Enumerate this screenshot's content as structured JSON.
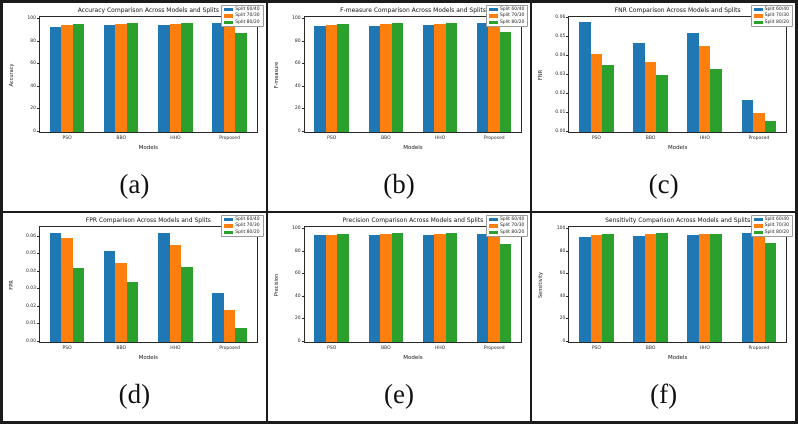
{
  "panels": {
    "captions": [
      "(a)",
      "(b)",
      "(c)",
      "(d)",
      "(e)",
      "(f)"
    ]
  },
  "legend": {
    "labels": [
      "Split 60/40",
      "Split 70/30",
      "Split 80/20"
    ],
    "colors": [
      "#1f77b4",
      "#ff7f0e",
      "#2ca02c"
    ]
  },
  "chart_data": [
    {
      "type": "bar",
      "title": "Accuracy Comparison Across Models and Splits",
      "xlabel": "Models",
      "ylabel": "Accuracy",
      "categories": [
        "PSO",
        "BBO",
        "HHO",
        "Proposed"
      ],
      "ylim": [
        0,
        102
      ],
      "yticks": [
        {
          "label": "0",
          "v": 0
        },
        {
          "label": "20",
          "v": 20
        },
        {
          "label": "40",
          "v": 40
        },
        {
          "label": "60",
          "v": 60
        },
        {
          "label": "80",
          "v": 80
        },
        {
          "label": "100",
          "v": 100
        }
      ],
      "legend_position": "upper right",
      "grid": false,
      "series": [
        {
          "name": "Split 60/40",
          "color": "#1f77b4",
          "values": [
            93.5,
            95.0,
            94.5,
            96.5
          ]
        },
        {
          "name": "Split 70/30",
          "color": "#ff7f0e",
          "values": [
            95.0,
            96.0,
            95.5,
            98.0
          ]
        },
        {
          "name": "Split 80/20",
          "color": "#2ca02c",
          "values": [
            96.0,
            97.0,
            97.0,
            88.0
          ]
        }
      ]
    },
    {
      "type": "bar",
      "title": "F-measure Comparison Across Models and Splits",
      "xlabel": "Models",
      "ylabel": "F-measure",
      "categories": [
        "PSO",
        "BBO",
        "HHO",
        "Proposed"
      ],
      "ylim": [
        0,
        102
      ],
      "yticks": [
        {
          "label": "0",
          "v": 0
        },
        {
          "label": "20",
          "v": 20
        },
        {
          "label": "40",
          "v": 40
        },
        {
          "label": "60",
          "v": 60
        },
        {
          "label": "80",
          "v": 80
        },
        {
          "label": "100",
          "v": 100
        }
      ],
      "legend_position": "upper right",
      "grid": false,
      "series": [
        {
          "name": "Split 60/40",
          "color": "#1f77b4",
          "values": [
            94.0,
            94.0,
            94.5,
            96.5
          ]
        },
        {
          "name": "Split 70/30",
          "color": "#ff7f0e",
          "values": [
            95.0,
            95.5,
            95.5,
            97.5
          ]
        },
        {
          "name": "Split 80/20",
          "color": "#2ca02c",
          "values": [
            95.5,
            96.5,
            96.5,
            89.0
          ]
        }
      ]
    },
    {
      "type": "bar",
      "title": "FNR Comparison Across Models and Splits",
      "xlabel": "Models",
      "ylabel": "FNR",
      "categories": [
        "PSO",
        "BBO",
        "HHO",
        "Proposed"
      ],
      "ylim": [
        0,
        0.0605
      ],
      "yticks": [
        {
          "label": "0.00",
          "v": 0
        },
        {
          "label": "0.01",
          "v": 0.01
        },
        {
          "label": "0.02",
          "v": 0.02
        },
        {
          "label": "0.03",
          "v": 0.03
        },
        {
          "label": "0.04",
          "v": 0.04
        },
        {
          "label": "0.05",
          "v": 0.05
        },
        {
          "label": "0.06",
          "v": 0.06
        }
      ],
      "legend_position": "upper right",
      "grid": false,
      "series": [
        {
          "name": "Split 60/40",
          "color": "#1f77b4",
          "values": [
            0.058,
            0.047,
            0.052,
            0.017
          ]
        },
        {
          "name": "Split 70/30",
          "color": "#ff7f0e",
          "values": [
            0.041,
            0.037,
            0.045,
            0.01
          ]
        },
        {
          "name": "Split 80/20",
          "color": "#2ca02c",
          "values": [
            0.035,
            0.03,
            0.033,
            0.006
          ]
        }
      ]
    },
    {
      "type": "bar",
      "title": "FPR Comparison Across Models and Splits",
      "xlabel": "Models",
      "ylabel": "FPR",
      "categories": [
        "PSO",
        "BBO",
        "HHO",
        "Proposed"
      ],
      "ylim": [
        0,
        0.0655
      ],
      "yticks": [
        {
          "label": "0.00",
          "v": 0
        },
        {
          "label": "0.01",
          "v": 0.01
        },
        {
          "label": "0.02",
          "v": 0.02
        },
        {
          "label": "0.03",
          "v": 0.03
        },
        {
          "label": "0.04",
          "v": 0.04
        },
        {
          "label": "0.05",
          "v": 0.05
        },
        {
          "label": "0.06",
          "v": 0.06
        }
      ],
      "legend_position": "upper right",
      "grid": false,
      "series": [
        {
          "name": "Split 60/40",
          "color": "#1f77b4",
          "values": [
            0.062,
            0.052,
            0.062,
            0.028
          ]
        },
        {
          "name": "Split 70/30",
          "color": "#ff7f0e",
          "values": [
            0.059,
            0.045,
            0.055,
            0.018
          ]
        },
        {
          "name": "Split 80/20",
          "color": "#2ca02c",
          "values": [
            0.042,
            0.034,
            0.043,
            0.008
          ]
        }
      ]
    },
    {
      "type": "bar",
      "title": "Precision Comparison Across Models and Splits",
      "xlabel": "Models",
      "ylabel": "Precision",
      "categories": [
        "PSO",
        "BBO",
        "HHO",
        "Proposed"
      ],
      "ylim": [
        0,
        102
      ],
      "yticks": [
        {
          "label": "0",
          "v": 0
        },
        {
          "label": "20",
          "v": 20
        },
        {
          "label": "40",
          "v": 40
        },
        {
          "label": "60",
          "v": 60
        },
        {
          "label": "80",
          "v": 80
        },
        {
          "label": "100",
          "v": 100
        }
      ],
      "legend_position": "upper right",
      "grid": false,
      "series": [
        {
          "name": "Split 60/40",
          "color": "#1f77b4",
          "values": [
            94.5,
            95.0,
            95.0,
            96.0
          ]
        },
        {
          "name": "Split 70/30",
          "color": "#ff7f0e",
          "values": [
            95.0,
            95.5,
            95.5,
            98.0
          ]
        },
        {
          "name": "Split 80/20",
          "color": "#2ca02c",
          "values": [
            95.5,
            97.0,
            97.0,
            87.0
          ]
        }
      ]
    },
    {
      "type": "bar",
      "title": "Sensitivity Comparison Across Models and Splits",
      "xlabel": "Models",
      "ylabel": "Sensitivity",
      "categories": [
        "PSO",
        "BBO",
        "HHO",
        "Proposed"
      ],
      "ylim": [
        0,
        102
      ],
      "yticks": [
        {
          "label": "0",
          "v": 0
        },
        {
          "label": "20",
          "v": 20
        },
        {
          "label": "40",
          "v": 40
        },
        {
          "label": "60",
          "v": 60
        },
        {
          "label": "80",
          "v": 80
        },
        {
          "label": "100",
          "v": 100
        }
      ],
      "legend_position": "upper right",
      "grid": false,
      "series": [
        {
          "name": "Split 60/40",
          "color": "#1f77b4",
          "values": [
            93.0,
            94.0,
            94.5,
            96.5
          ]
        },
        {
          "name": "Split 70/30",
          "color": "#ff7f0e",
          "values": [
            94.5,
            95.5,
            95.5,
            97.5
          ]
        },
        {
          "name": "Split 80/20",
          "color": "#2ca02c",
          "values": [
            95.5,
            96.5,
            96.0,
            87.5
          ]
        }
      ]
    }
  ]
}
